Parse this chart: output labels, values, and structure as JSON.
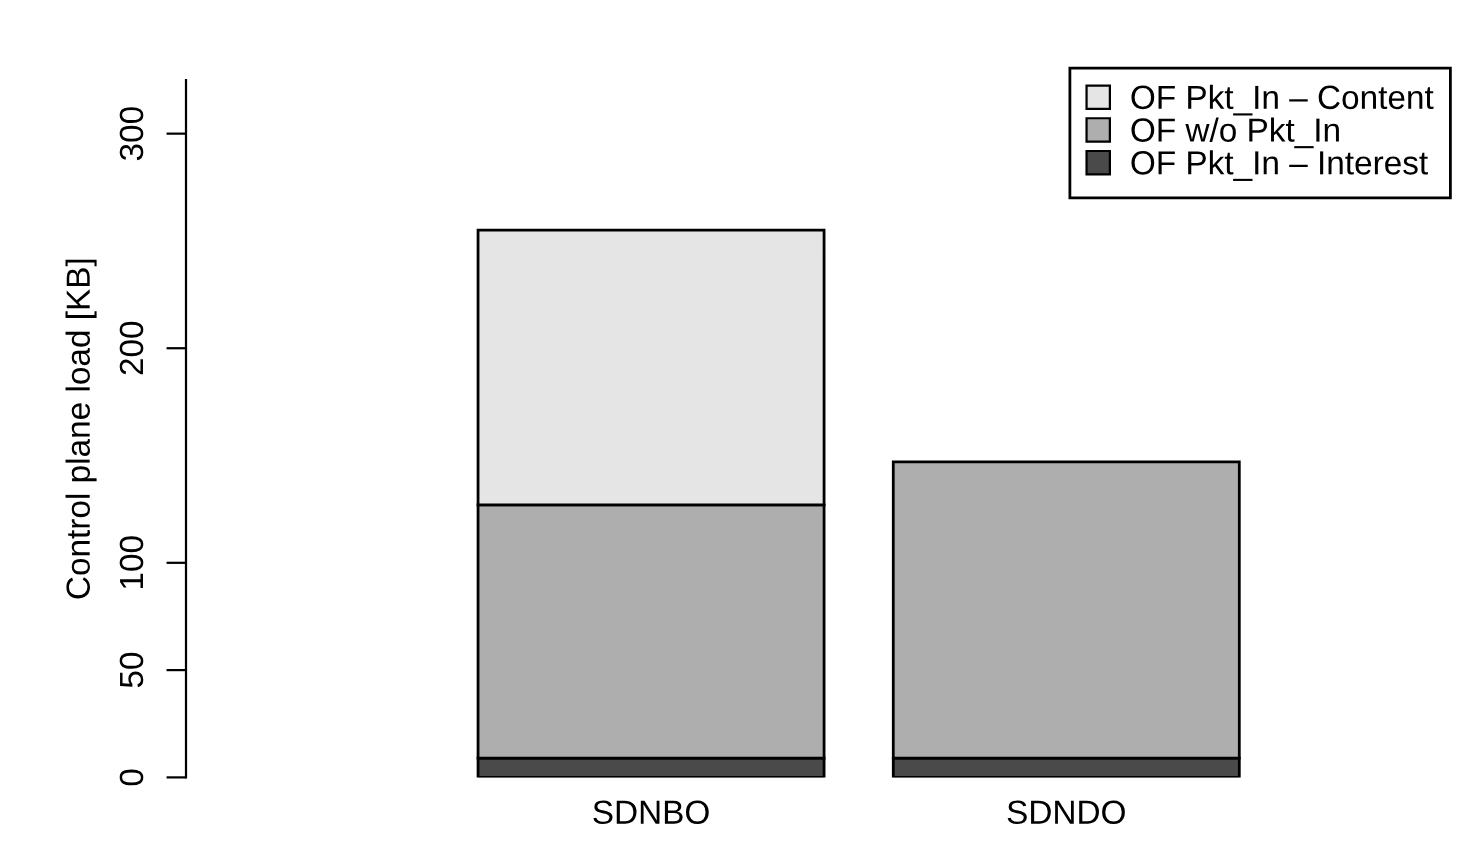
{
  "chart_data": {
    "type": "bar",
    "stacked": true,
    "ylabel": "Control plane load [KB]",
    "categories": [
      "SDNBO",
      "SDNDO"
    ],
    "series": [
      {
        "name": "OF Pkt_In – Interest",
        "color": "#4a4a4a",
        "values": [
          9,
          9
        ]
      },
      {
        "name": "OF w/o Pkt_In",
        "color": "#aeaeae",
        "values": [
          118,
          138
        ]
      },
      {
        "name": "OF Pkt_In – Content",
        "color": "#e5e5e5",
        "values": [
          128,
          null
        ]
      }
    ],
    "ylim": [
      0,
      325
    ],
    "yticks": [
      0,
      50,
      100,
      200,
      300
    ],
    "legend": "top right",
    "grid": false
  }
}
